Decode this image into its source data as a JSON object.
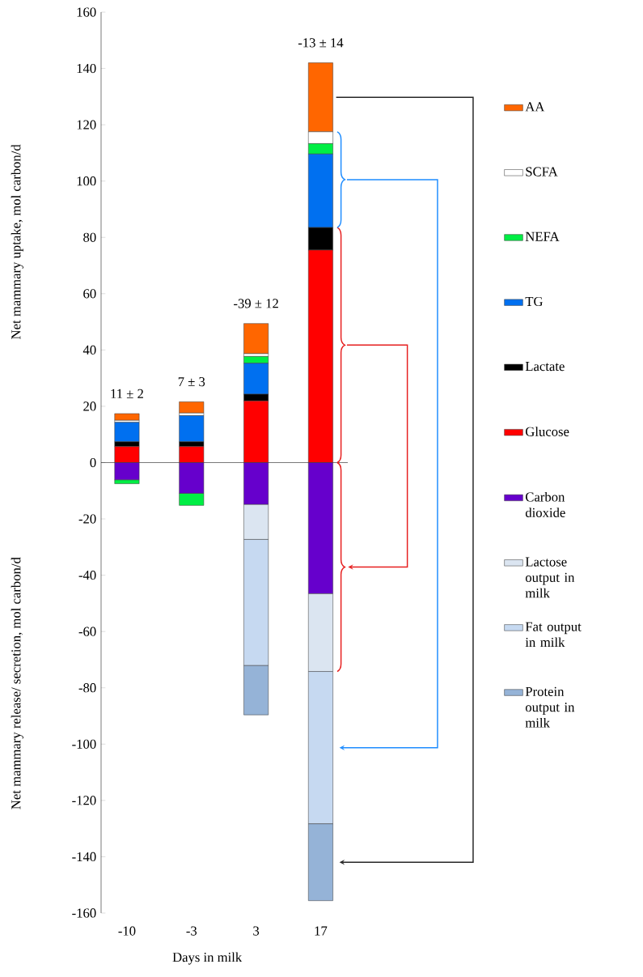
{
  "chart_data": {
    "type": "bar",
    "stacked": true,
    "categories": [
      "-10",
      "-3",
      "3",
      "17"
    ],
    "xlabel": "Days in milk",
    "ylabel": "Net mammary uptake, mol carbon/d",
    "ylim": [
      -160,
      160
    ],
    "yticks": [
      -160,
      -140,
      -120,
      -100,
      -80,
      -60,
      -40,
      -20,
      0,
      20,
      40,
      60,
      80,
      100,
      120,
      140,
      160
    ],
    "legend": "right",
    "series": [
      {
        "name": "Glucose",
        "color": "#ff0000",
        "values": [
          5.7,
          5.7,
          21.9,
          75.5
        ]
      },
      {
        "name": "Lactate",
        "color": "#000000",
        "values": [
          1.7,
          1.7,
          2.4,
          8.0
        ]
      },
      {
        "name": "TG",
        "color": "#0070f0",
        "values": [
          6.9,
          9.3,
          11.0,
          26.1
        ]
      },
      {
        "name": "Carbon dioxide",
        "color": "#6600cc",
        "values": [
          -6.1,
          -10.9,
          -14.9,
          -46.6
        ]
      },
      {
        "name": "NEFA",
        "color": "#00ee44",
        "values": [
          -1.4,
          -4.3,
          2.4,
          3.7
        ]
      },
      {
        "name": "SCFA",
        "color": "#ffffff",
        "values": [
          0.7,
          0.9,
          1.0,
          4.2
        ]
      },
      {
        "name": "AA",
        "color": "#ff6600",
        "values": [
          2.4,
          4.0,
          10.7,
          24.5
        ]
      },
      {
        "name": "Lactose output in milk",
        "color": "#dbe5f1",
        "values": [
          null,
          null,
          -12.4,
          -27.6
        ]
      },
      {
        "name": "Fat output in milk",
        "color": "#c6d9f1",
        "values": [
          null,
          null,
          -44.8,
          -54.1
        ]
      },
      {
        "name": "Protein output in milk",
        "color": "#95b3d7",
        "values": [
          null,
          null,
          -17.5,
          -27.3
        ]
      }
    ],
    "annotations": [
      "11 ± 2",
      "7 ± 3",
      "-39 ± 12",
      "-13 ± 14",
      "Net mammary release/ secretion, mol carbon/d"
    ]
  }
}
